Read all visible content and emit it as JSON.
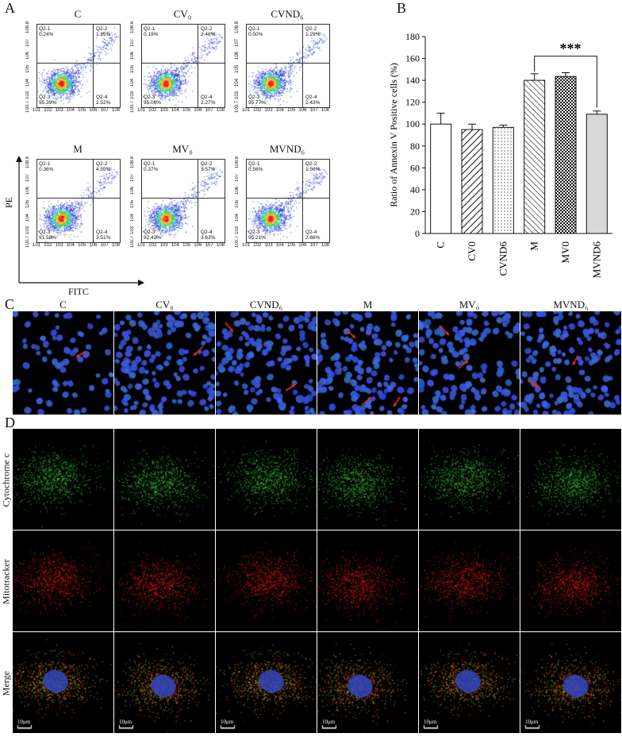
{
  "panel_letters": {
    "a": "A",
    "b": "B",
    "c": "C",
    "d": "D"
  },
  "flow_cytometry": {
    "y_axis_title": "PE",
    "x_axis_title": "FITC",
    "plots": [
      {
        "title": "C",
        "q1": "Q2-1\n0.24%",
        "q2": "Q2-2\n1.85%",
        "q3": "Q2-3\n95.39%",
        "q4": "Q2-4\n2.52%"
      },
      {
        "title": "CV₀",
        "q1": "Q2-1\n0.19%",
        "q2": "Q2-2\n2.48%",
        "q3": "Q2-3\n95.06%",
        "q4": "Q2-4\n2.27%"
      },
      {
        "title": "CVND₆",
        "q1": "Q2-1\n0.50%",
        "q2": "Q2-2\n1.29%",
        "q3": "Q2-3\n95.77%",
        "q4": "Q2-4\n2.43%"
      },
      {
        "title": "M",
        "q1": "Q2-1\n0.36%",
        "q2": "Q2-2\n4.55%",
        "q3": "Q2-3\n91.58%",
        "q4": "Q2-4\n3.51%"
      },
      {
        "title": "MV₀",
        "q1": "Q2-1\n0.37%",
        "q2": "Q2-2\n3.57%",
        "q3": "Q2-3\n92.42%",
        "q4": "Q2-4\n3.63%"
      },
      {
        "title": "MVND₆",
        "q1": "Q2-1\n0.56%",
        "q2": "Q2-2\n1.56%",
        "q3": "Q2-3\n95.21%",
        "q4": "Q2-4\n2.66%"
      }
    ],
    "y_ticks": [
      "10^0.7",
      "10^3",
      "10^4",
      "10^5",
      "10^6",
      "10^7",
      "10^8.8"
    ],
    "x_ticks": [
      "10^1",
      "10^2",
      "10^3",
      "10^4",
      "10^5",
      "10^6",
      "10^7",
      "10^8"
    ]
  },
  "chart_data": {
    "type": "bar",
    "categories": [
      "C",
      "CV0",
      "CVND6",
      "M",
      "MV0",
      "MVND6"
    ],
    "values": [
      100,
      95,
      97,
      140,
      143.5,
      109
    ],
    "errors": [
      10,
      5,
      2,
      6,
      3.5,
      3
    ],
    "ylabel": "Ratio of Annexin V Positive cells (%)",
    "ylim": [
      0,
      180
    ],
    "yticks": [
      0,
      20,
      40,
      60,
      80,
      100,
      120,
      140,
      160,
      180
    ],
    "significance": {
      "from": "M",
      "to": "MVND6",
      "label": "***"
    },
    "patterns": [
      "none",
      "diagonal-right",
      "dots",
      "diagonal-left",
      "checker",
      "solid-gray"
    ]
  },
  "panel_c": {
    "labels": [
      "C",
      "CV₀",
      "CVND₆",
      "M",
      "MV₀",
      "MVND₆"
    ]
  },
  "panel_d": {
    "row_labels": [
      "Cytochrome c",
      "Mitotracker",
      "Merge"
    ],
    "scale_bar_label": "10μm"
  },
  "colors": {
    "nuclei": "#2f4fd6",
    "arrow": "#e8321e",
    "cytochrome": "#2ecc3a",
    "mitotracker": "#e11b1b",
    "merge": "#e8a21a"
  }
}
